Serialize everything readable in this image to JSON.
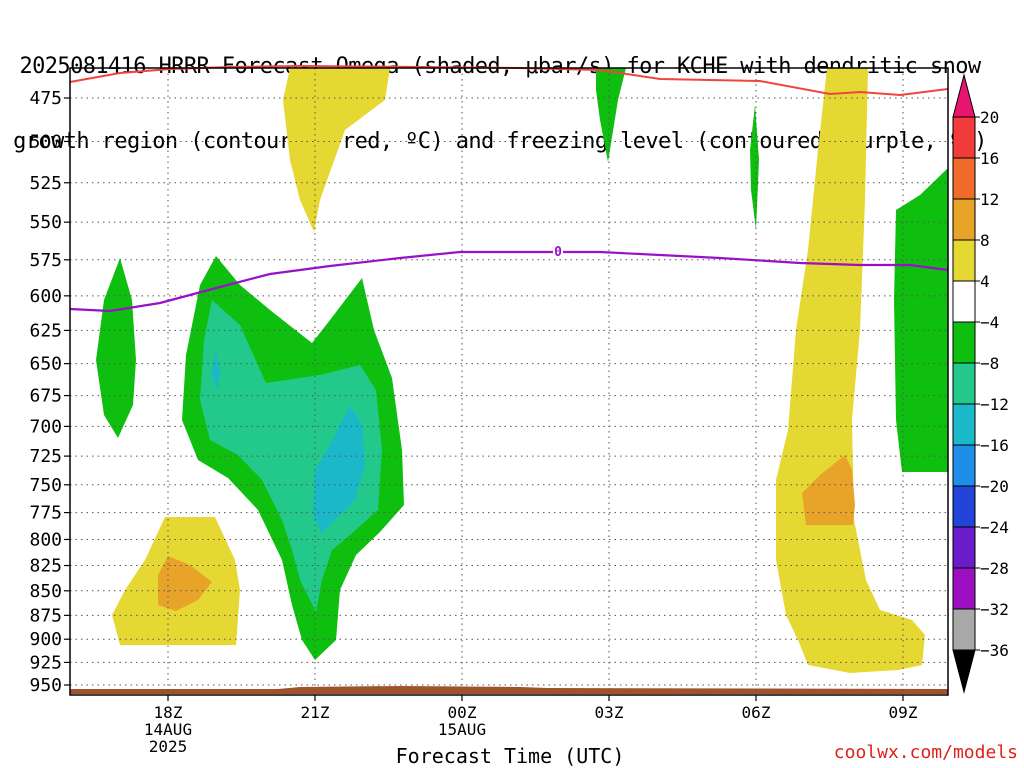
{
  "chart_data": {
    "type": "heatmap",
    "title_line1": "2025081416 HRRR Forecast Omega (shaded, μbar/s) for KCHE with dendritic snow",
    "title_line2": "growth region (contoured, red, ºC) and freezing level (contoured, purple, ºC)",
    "xlabel": "Forecast Time (UTC)",
    "credit": "coolwx.com/models",
    "y_axis": {
      "ticks": [
        475,
        500,
        525,
        550,
        575,
        600,
        625,
        650,
        675,
        700,
        725,
        750,
        775,
        800,
        825,
        850,
        875,
        900,
        925,
        950
      ]
    },
    "x_axis": {
      "ticks": [
        {
          "label": "18Z",
          "sub1": "14AUG",
          "sub2": "2025",
          "hour": 18
        },
        {
          "label": "21Z",
          "sub1": "",
          "sub2": "",
          "hour": 21
        },
        {
          "label": "00Z",
          "sub1": "15AUG",
          "sub2": "",
          "hour": 24
        },
        {
          "label": "03Z",
          "sub1": "",
          "sub2": "",
          "hour": 27
        },
        {
          "label": "06Z",
          "sub1": "",
          "sub2": "",
          "hour": 30
        },
        {
          "label": "09Z",
          "sub1": "",
          "sub2": "",
          "hour": 33
        }
      ]
    },
    "colorbar": {
      "levels": [
        "20",
        "16",
        "12",
        "8",
        "4",
        "−4",
        "−8",
        "−12",
        "−16",
        "−20",
        "−24",
        "−28",
        "−32",
        "−36"
      ],
      "colors": [
        "#e8146e",
        "#f23c3c",
        "#f06a2a",
        "#e8a428",
        "#e6d832",
        "#ffffff",
        "#0fbf0f",
        "#22c98a",
        "#1ab8c8",
        "#1e8ee8",
        "#2244d8",
        "#6a1cc8",
        "#9a0fc0",
        "#a8a8a8",
        "#000000"
      ]
    },
    "freezing_level_label": "0",
    "series": [
      {
        "name": "dendritic snow growth region",
        "color": "#f0443c"
      },
      {
        "name": "freezing level",
        "color": "#9a10c8"
      }
    ]
  }
}
